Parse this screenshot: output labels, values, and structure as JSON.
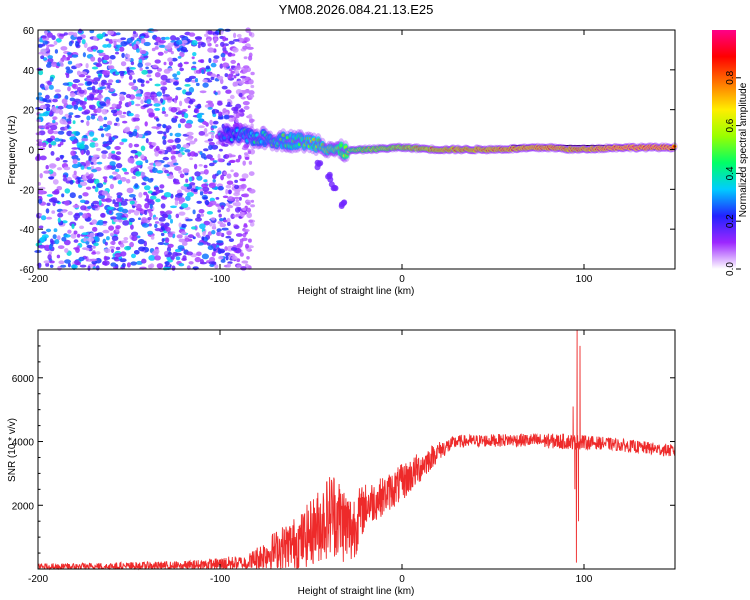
{
  "title": "YM08.2026.084.21.13.E25",
  "chart_data": [
    {
      "type": "heatmap",
      "title": "YM08.2026.084.21.13.E25",
      "xlabel": "Height of straight line (km)",
      "ylabel": "Frequency (Hz)",
      "xlim": [
        -200,
        150
      ],
      "ylim": [
        -60,
        60
      ],
      "xticks": [
        -200,
        -100,
        0,
        100
      ],
      "yticks": [
        -60,
        -40,
        -20,
        0,
        20,
        40,
        60
      ],
      "colorbar": {
        "label": "Normalized spectral amplitude",
        "range": [
          0,
          1
        ],
        "ticks": [
          "0.0",
          "0.2",
          "0.4",
          "0.6",
          "0.8"
        ],
        "colors": [
          "#ffffff",
          "#9c27ff",
          "#2222ff",
          "#00ccff",
          "#00ff66",
          "#99ff00",
          "#ffee00",
          "#ff7700",
          "#ff0000",
          "#ff0088"
        ]
      },
      "noise_region_x": [
        -200,
        -82
      ],
      "signal_track": [
        {
          "x": -100,
          "f": 7,
          "amp": 0.25
        },
        {
          "x": -90,
          "f": 7,
          "amp": 0.35
        },
        {
          "x": -70,
          "f": 5,
          "amp": 0.4
        },
        {
          "x": -55,
          "f": 4,
          "amp": 0.45
        },
        {
          "x": -45,
          "f": 3,
          "amp": 0.5
        },
        {
          "x": -35,
          "f": -1,
          "amp": 0.55
        },
        {
          "x": -20,
          "f": 0,
          "amp": 0.65
        },
        {
          "x": 0,
          "f": 1,
          "amp": 0.7
        },
        {
          "x": 20,
          "f": 0,
          "amp": 0.8
        },
        {
          "x": 50,
          "f": 0,
          "amp": 0.85
        },
        {
          "x": 80,
          "f": 1,
          "amp": 0.9
        },
        {
          "x": 95,
          "f": 0,
          "amp": 0.85
        },
        {
          "x": 120,
          "f": 1,
          "amp": 0.95
        },
        {
          "x": 150,
          "f": 1,
          "amp": 0.95
        }
      ],
      "branch_track": [
        {
          "x": -45,
          "f": -8
        },
        {
          "x": -40,
          "f": -14
        },
        {
          "x": -38,
          "f": -18
        },
        {
          "x": -32,
          "f": -28
        }
      ]
    },
    {
      "type": "line",
      "xlabel": "Height of straight line (km)",
      "ylabel": "SNR (10 * v/v)",
      "xlim": [
        -200,
        150
      ],
      "ylim": [
        0,
        7500
      ],
      "xticks": [
        -200,
        -100,
        0,
        100
      ],
      "yticks": [
        2000,
        4000,
        6000
      ],
      "color": "#ee2a2a",
      "envelope": [
        {
          "x": -200,
          "mean": 50,
          "noise": 120
        },
        {
          "x": -120,
          "mean": 100,
          "noise": 150
        },
        {
          "x": -85,
          "mean": 200,
          "noise": 250
        },
        {
          "x": -70,
          "mean": 600,
          "noise": 600
        },
        {
          "x": -55,
          "mean": 900,
          "noise": 900
        },
        {
          "x": -45,
          "mean": 1400,
          "noise": 1200
        },
        {
          "x": -38,
          "mean": 1800,
          "noise": 1400
        },
        {
          "x": -28,
          "mean": 1200,
          "noise": 1200
        },
        {
          "x": -20,
          "mean": 2000,
          "noise": 700
        },
        {
          "x": -10,
          "mean": 2300,
          "noise": 600
        },
        {
          "x": 0,
          "mean": 2700,
          "noise": 600
        },
        {
          "x": 10,
          "mean": 3200,
          "noise": 500
        },
        {
          "x": 20,
          "mean": 3700,
          "noise": 300
        },
        {
          "x": 30,
          "mean": 4000,
          "noise": 200
        },
        {
          "x": 60,
          "mean": 4050,
          "noise": 200
        },
        {
          "x": 90,
          "mean": 4000,
          "noise": 250
        },
        {
          "x": 110,
          "mean": 3950,
          "noise": 200
        },
        {
          "x": 150,
          "mean": 3700,
          "noise": 200
        }
      ],
      "spikes": [
        {
          "x": 94,
          "y": 5100
        },
        {
          "x": 95,
          "y": 2500
        },
        {
          "x": 95.8,
          "y": 200
        },
        {
          "x": 96.2,
          "y": 7500
        },
        {
          "x": 97,
          "y": 1500
        },
        {
          "x": 97.8,
          "y": 7000
        },
        {
          "x": 99,
          "y": 4200
        }
      ]
    }
  ]
}
